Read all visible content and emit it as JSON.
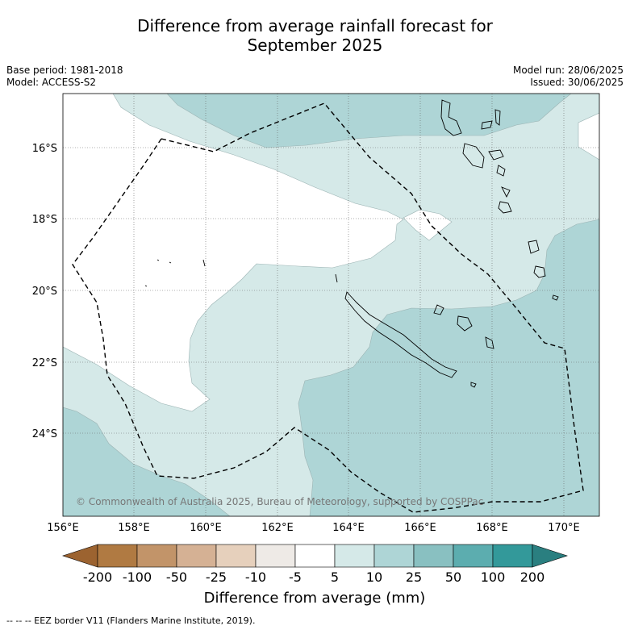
{
  "title_line1": "Difference from average rainfall forecast for",
  "title_line2": "September 2025",
  "meta_left": {
    "base_period": "Base period: 1981-2018",
    "model": "Model: ACCESS-S2"
  },
  "meta_right": {
    "model_run": "Model run: 28/06/2025",
    "issued": "Issued: 30/06/2025"
  },
  "map": {
    "lon_ticks": [
      "156°E",
      "158°E",
      "160°E",
      "162°E",
      "164°E",
      "166°E",
      "168°E",
      "170°E"
    ],
    "lat_ticks": [
      "16°S",
      "18°S",
      "20°S",
      "22°S",
      "24°S"
    ],
    "copyright": "© Commonwealth of Australia 2025, Bureau of Meteorology, supported by COSPPac"
  },
  "legend": {
    "tick_labels": [
      "-200",
      "-100",
      "-50",
      "-25",
      "-10",
      "-5",
      "5",
      "10",
      "25",
      "50",
      "100",
      "200"
    ],
    "title": "Difference from average (mm)",
    "colors": [
      "#9c6330",
      "#b07a42",
      "#c29469",
      "#d5b194",
      "#e6d0bc",
      "#eeeae6",
      "#ffffff",
      "#d5e9e8",
      "#aed5d6",
      "#89c0c1",
      "#5cadaf",
      "#33999a",
      "#2a7f80"
    ]
  },
  "footer": "--  --  -- EEZ border V11 (Flanders Marine Institute, 2019)."
}
